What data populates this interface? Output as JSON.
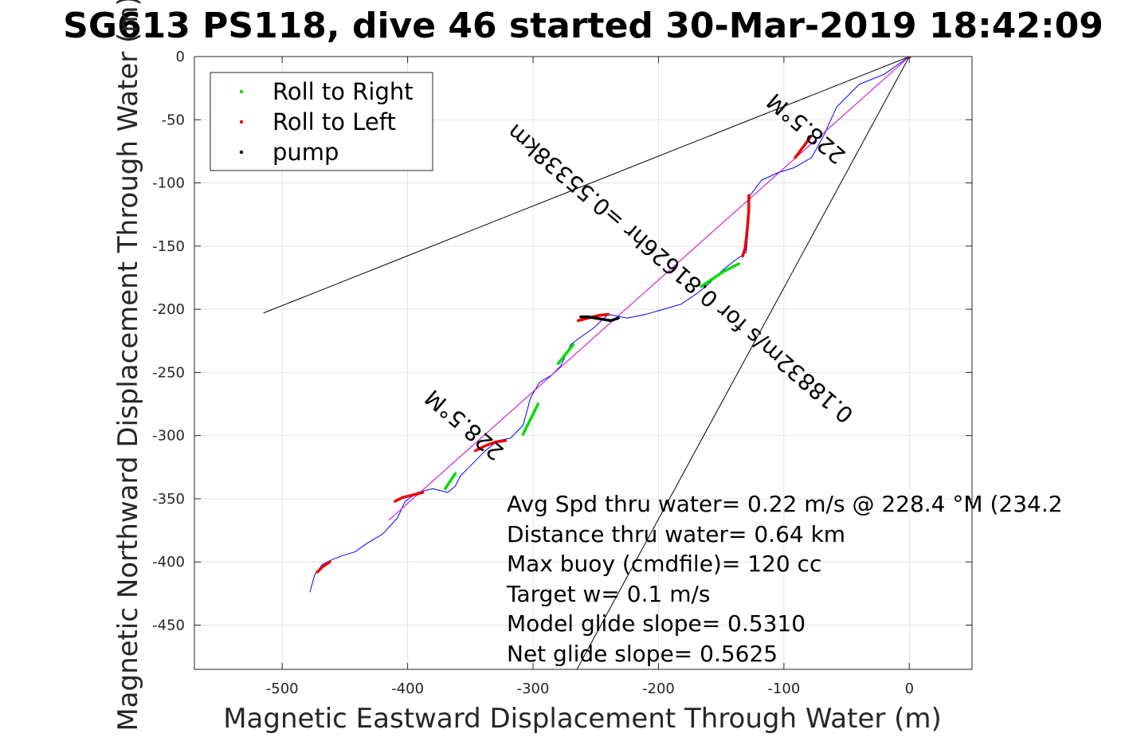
{
  "chart_data": {
    "type": "line",
    "title": "SG613 PS118, dive 46 started 30-Mar-2019 18:42:09",
    "xlabel": "Magnetic Eastward Displacement Through Water (m)",
    "ylabel": "Magnetic Northward Displacement Through Water (m)",
    "xlim": [
      -570,
      50
    ],
    "ylim": [
      -485,
      0
    ],
    "xticks": [
      -500,
      -400,
      -300,
      -200,
      -100,
      0
    ],
    "yticks": [
      0,
      -50,
      -100,
      -150,
      -200,
      -250,
      -300,
      -350,
      -400,
      -450
    ],
    "xtick_labels": [
      "-500",
      "-400",
      "-300",
      "-200",
      "-100",
      "0"
    ],
    "ytick_labels": [
      "0",
      "-50",
      "-100",
      "-150",
      "-200",
      "-250",
      "-300",
      "-350",
      "-400",
      "-450"
    ],
    "grid": true,
    "legend": {
      "placement": "top-left",
      "entries": [
        {
          "label": "Roll to Right",
          "color": "#00dd00"
        },
        {
          "label": "Roll to Left",
          "color": "#ee0000"
        },
        {
          "label": "pump",
          "color": "#000000"
        }
      ]
    },
    "series": [
      {
        "role": "track",
        "color": "#0000ff",
        "x": [
          0,
          -20,
          -40,
          -58,
          -68,
          -78,
          -92,
          -105,
          -118,
          -127,
          -128,
          -130,
          -140,
          -150,
          -160,
          -170,
          -182,
          -196,
          -210,
          -225,
          -240,
          -252,
          -262,
          -270,
          -278,
          -285,
          -295,
          -302,
          -308,
          -318,
          -328,
          -338,
          -348,
          -358,
          -362,
          -368,
          -380,
          -392,
          -402,
          -408,
          -420,
          -432,
          -442,
          -452,
          -460,
          -468,
          -474,
          -478
        ],
        "y": [
          0,
          -14,
          -22,
          -40,
          -62,
          -80,
          -88,
          -92,
          -98,
          -110,
          -130,
          -155,
          -162,
          -170,
          -180,
          -188,
          -196,
          -200,
          -204,
          -207,
          -204,
          -215,
          -222,
          -228,
          -245,
          -252,
          -258,
          -270,
          -292,
          -302,
          -304,
          -312,
          -322,
          -332,
          -340,
          -345,
          -342,
          -345,
          -352,
          -365,
          -378,
          -385,
          -392,
          -395,
          -398,
          -402,
          -410,
          -424
        ]
      },
      {
        "role": "mean-heading-line",
        "color": "#cc00cc",
        "x": [
          0,
          -415
        ],
        "y": [
          0,
          -367
        ]
      },
      {
        "role": "bound-line-upper",
        "color": "#000000",
        "x": [
          0,
          -515
        ],
        "y": [
          0,
          -203
        ]
      },
      {
        "role": "bound-line-lower",
        "color": "#000000",
        "x": [
          0,
          -265
        ],
        "y": [
          0,
          -485
        ]
      }
    ],
    "markers": {
      "roll_right": {
        "color": "#00dd00",
        "segments": [
          {
            "x": [
              -136,
              -142,
              -148,
              -154,
              -160,
              -166
            ],
            "y": [
              -164,
              -167,
              -170,
              -174,
              -178,
              -182
            ]
          },
          {
            "x": [
              -268,
              -272,
              -276,
              -280
            ],
            "y": [
              -228,
              -233,
              -238,
              -243
            ]
          },
          {
            "x": [
              -296,
              -300,
              -304,
              -308
            ],
            "y": [
              -275,
              -283,
              -291,
              -299
            ]
          },
          {
            "x": [
              -362,
              -366,
              -370
            ],
            "y": [
              -330,
              -336,
              -342
            ]
          }
        ]
      },
      "roll_left": {
        "color": "#ee0000",
        "segments": [
          {
            "x": [
              -128,
              -128,
              -129,
              -130,
              -131,
              -133
            ],
            "y": [
              -110,
              -122,
              -134,
              -144,
              -152,
              -158
            ]
          },
          {
            "x": [
              -240,
              -248,
              -256,
              -264
            ],
            "y": [
              -204,
              -205,
              -207,
              -209
            ]
          },
          {
            "x": [
              -322,
              -330,
              -338,
              -346
            ],
            "y": [
              -304,
              -305,
              -308,
              -312
            ]
          },
          {
            "x": [
              -388,
              -396,
              -404,
              -410
            ],
            "y": [
              -345,
              -347,
              -349,
              -352
            ]
          },
          {
            "x": [
              -462,
              -468,
              -472
            ],
            "y": [
              -400,
              -404,
              -408
            ]
          },
          {
            "x": [
              -79,
              -85,
              -91
            ],
            "y": [
              -64,
              -72,
              -80
            ]
          }
        ]
      },
      "pump": {
        "color": "#000000",
        "segments": [
          {
            "x": [
              -232,
              -238,
              -244,
              -250,
              -256,
              -262
            ],
            "y": [
              -207,
              -209,
              -208,
              -207,
              -206,
              -206
            ]
          }
        ]
      },
      "surface": {
        "color": "#ee0000",
        "x": [
          0
        ],
        "y": [
          0
        ]
      }
    },
    "annotations": {
      "heading_upper": "228.5°M",
      "heading_lower": "228.5°M",
      "speed_line": "0.18832m/s for 0.81626hr =0.55338km",
      "stats": [
        "Avg Spd thru water=  0.22 m/s @ 228.4 °M (234.2",
        "Distance thru water=  0.64 km",
        "Max buoy (cmdfile)= 120 cc",
        "Target w= 0.1 m/s",
        "Model glide slope= 0.5310",
        "Net glide slope= 0.5625"
      ]
    }
  }
}
